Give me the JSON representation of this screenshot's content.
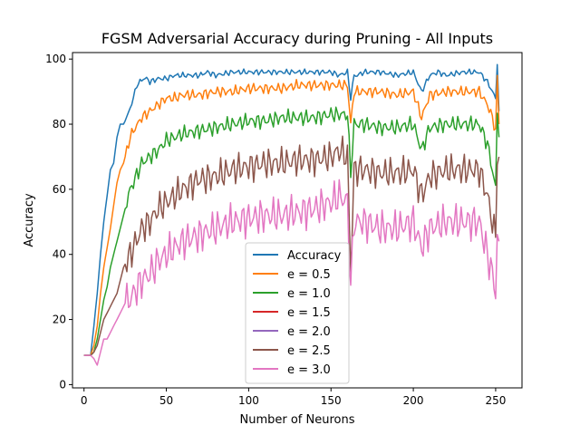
{
  "chart_data": {
    "type": "line",
    "title": "FGSM Adversarial Accuracy during Pruning - All Inputs",
    "xlabel": "Number of Neurons",
    "ylabel": "Accuracy",
    "xlim": [
      -7,
      266
    ],
    "ylim": [
      -1,
      102
    ],
    "xticks": [
      0,
      50,
      100,
      150,
      200,
      250
    ],
    "yticks": [
      0,
      20,
      40,
      60,
      80,
      100
    ],
    "grid": false,
    "legend_position": "lower center",
    "series": [
      {
        "name": "Accuracy",
        "color": "#1f77b4",
        "x": [
          0,
          2,
          4,
          6,
          8,
          10,
          12,
          14,
          16,
          18,
          20,
          22,
          24,
          26,
          28,
          30,
          32,
          34,
          36,
          38,
          40,
          45,
          50,
          55,
          60,
          65,
          70,
          75,
          80,
          90,
          100,
          110,
          120,
          130,
          140,
          150,
          155,
          160,
          162,
          164,
          166,
          170,
          180,
          190,
          200,
          205,
          210,
          215,
          220,
          230,
          240,
          245,
          248,
          250,
          251,
          252
        ],
        "y": [
          9,
          9,
          9,
          18,
          28,
          40,
          50,
          58,
          66,
          68,
          76,
          80,
          80,
          82,
          85,
          88,
          92,
          93,
          94,
          94,
          93,
          94,
          94,
          95,
          95,
          95,
          95,
          96,
          95,
          96,
          96,
          96,
          96,
          96,
          96,
          96,
          95,
          96,
          88,
          95,
          95,
          96,
          96,
          95,
          96,
          90,
          95,
          96,
          95,
          96,
          96,
          93,
          90,
          88,
          99,
          84
        ]
      },
      {
        "name": "e = 0.5",
        "color": "#ff7f0e",
        "x": [
          0,
          2,
          4,
          6,
          8,
          10,
          12,
          14,
          16,
          18,
          20,
          22,
          24,
          26,
          28,
          30,
          35,
          40,
          45,
          50,
          55,
          60,
          70,
          80,
          90,
          100,
          110,
          120,
          130,
          140,
          150,
          160,
          162,
          164,
          166,
          170,
          180,
          190,
          200,
          205,
          210,
          220,
          230,
          240,
          245,
          248,
          250,
          251,
          252
        ],
        "y": [
          9,
          9,
          9,
          12,
          18,
          28,
          36,
          42,
          48,
          55,
          62,
          66,
          68,
          72,
          76,
          78,
          82,
          84,
          86,
          88,
          88,
          89,
          89,
          90,
          90,
          91,
          91,
          91,
          92,
          92,
          92,
          92,
          80,
          90,
          90,
          90,
          90,
          89,
          90,
          82,
          89,
          90,
          90,
          90,
          86,
          82,
          78,
          94,
          80
        ]
      },
      {
        "name": "e = 1.0",
        "color": "#2ca02c",
        "x": [
          0,
          2,
          4,
          6,
          8,
          10,
          12,
          14,
          16,
          18,
          20,
          22,
          24,
          26,
          28,
          30,
          35,
          40,
          45,
          50,
          55,
          60,
          70,
          80,
          90,
          100,
          110,
          120,
          130,
          140,
          150,
          160,
          162,
          164,
          166,
          170,
          180,
          190,
          200,
          205,
          210,
          220,
          230,
          240,
          245,
          248,
          250,
          251,
          252
        ],
        "y": [
          9,
          9,
          9,
          10,
          14,
          20,
          26,
          30,
          36,
          40,
          44,
          48,
          52,
          56,
          60,
          62,
          68,
          70,
          72,
          75,
          76,
          77,
          78,
          79,
          80,
          81,
          81,
          82,
          82,
          82,
          83,
          83,
          65,
          80,
          80,
          80,
          79,
          79,
          80,
          72,
          79,
          80,
          80,
          80,
          74,
          66,
          60,
          84,
          76
        ]
      },
      {
        "name": "e = 1.5",
        "color": "#d62728",
        "x": [
          0,
          252
        ],
        "y": [
          null,
          null
        ]
      },
      {
        "name": "e = 2.0",
        "color": "#9467bd",
        "x": [
          0,
          252
        ],
        "y": [
          null,
          null
        ]
      },
      {
        "name": "e = 2.5",
        "color": "#8c564b",
        "x": [
          0,
          2,
          4,
          6,
          8,
          10,
          12,
          14,
          16,
          18,
          20,
          22,
          24,
          26,
          28,
          30,
          35,
          40,
          45,
          50,
          55,
          60,
          70,
          80,
          90,
          100,
          110,
          120,
          130,
          140,
          150,
          155,
          160,
          162,
          164,
          166,
          170,
          180,
          190,
          200,
          205,
          210,
          220,
          230,
          240,
          245,
          248,
          250,
          251,
          252
        ],
        "y": [
          9,
          9,
          9,
          10,
          12,
          16,
          20,
          22,
          24,
          26,
          28,
          32,
          36,
          38,
          40,
          42,
          48,
          50,
          54,
          56,
          58,
          60,
          63,
          64,
          66,
          67,
          68,
          68,
          69,
          69,
          70,
          72,
          70,
          35,
          66,
          66,
          66,
          65,
          65,
          66,
          58,
          64,
          66,
          66,
          66,
          58,
          50,
          45,
          72,
          70
        ]
      },
      {
        "name": "e = 3.0",
        "color": "#e377c2",
        "x": [
          0,
          2,
          4,
          6,
          8,
          10,
          12,
          14,
          16,
          18,
          20,
          22,
          24,
          26,
          28,
          30,
          35,
          40,
          45,
          50,
          55,
          60,
          70,
          80,
          90,
          100,
          110,
          120,
          130,
          140,
          150,
          155,
          160,
          162,
          164,
          166,
          170,
          180,
          190,
          200,
          205,
          210,
          220,
          230,
          240,
          245,
          248,
          250,
          251,
          252
        ],
        "y": [
          9,
          9,
          9,
          8,
          6,
          10,
          14,
          14,
          16,
          18,
          20,
          22,
          24,
          26,
          26,
          28,
          32,
          34,
          38,
          40,
          42,
          44,
          46,
          48,
          50,
          51,
          52,
          52,
          53,
          54,
          56,
          58,
          56,
          30,
          50,
          50,
          50,
          48,
          48,
          50,
          42,
          48,
          50,
          50,
          50,
          40,
          34,
          28,
          46,
          44
        ]
      }
    ]
  }
}
